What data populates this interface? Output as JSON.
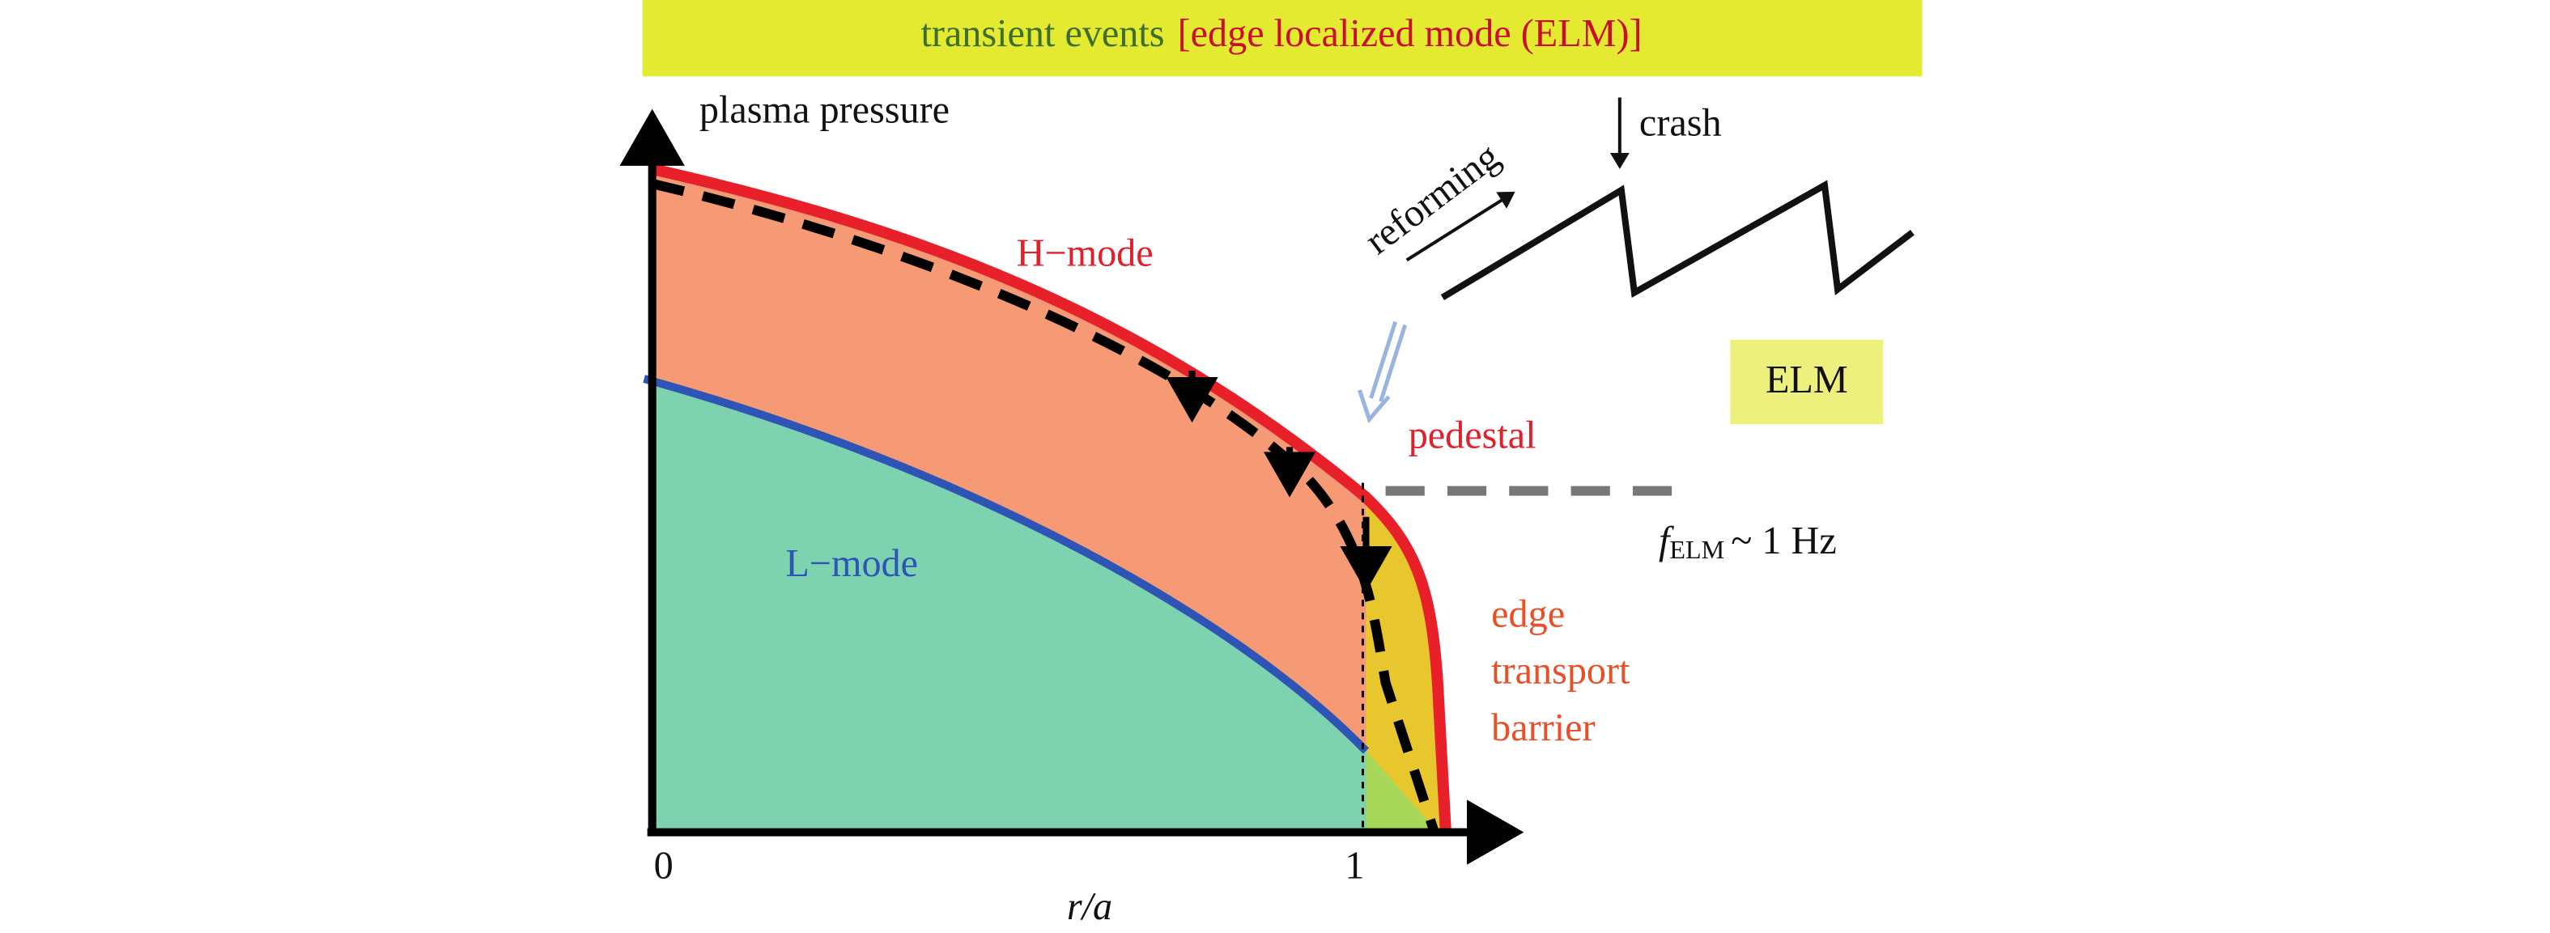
{
  "header": {
    "title_left": "transient events",
    "title_right": "[edge localized mode (ELM)]"
  },
  "axes": {
    "y_label": "plasma pressure",
    "x_label": "r/a",
    "x_origin": "0",
    "x_edge": "1"
  },
  "regions": {
    "h_mode": "H−mode",
    "l_mode": "L−mode",
    "pedestal": "pedestal",
    "barrier": [
      "edge",
      "transport",
      "barrier"
    ]
  },
  "inset": {
    "reforming": "reforming",
    "crash": "crash",
    "elm_box": "ELM"
  },
  "frequency": {
    "symbol": "f",
    "subscript": "ELM",
    "value": "~ 1 Hz"
  }
}
